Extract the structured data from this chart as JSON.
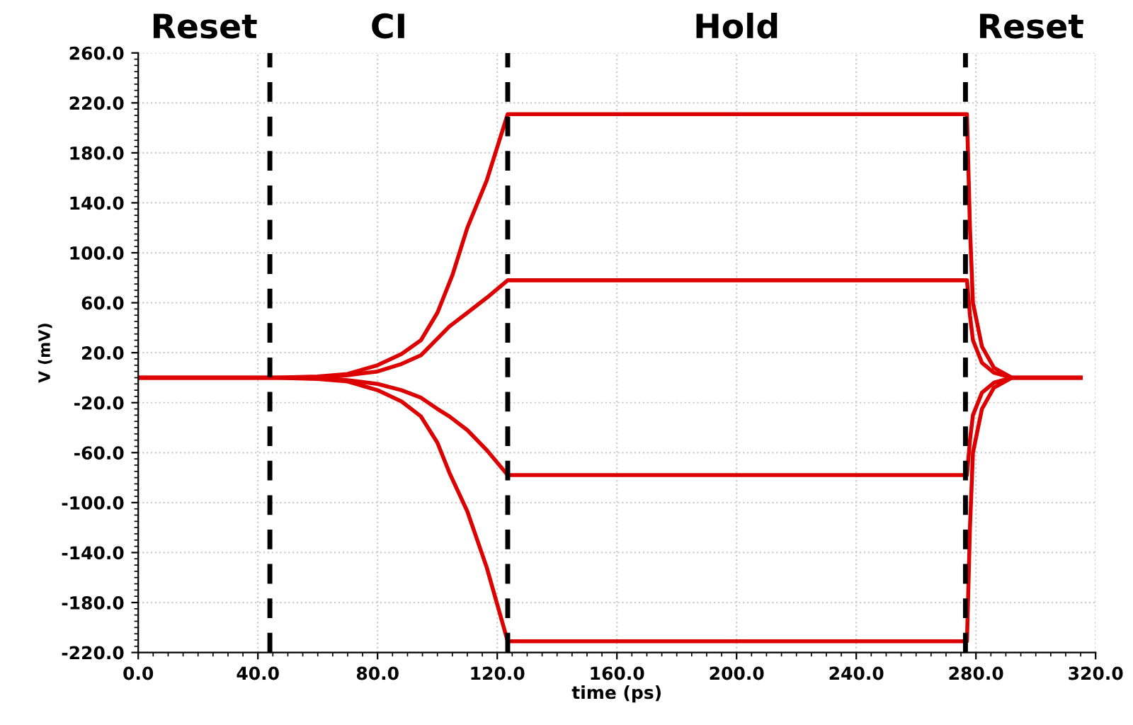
{
  "chart_data": {
    "type": "line",
    "xlabel": "time (ps)",
    "ylabel": "V (mV)",
    "series": [
      {
        "color": "#dd0000",
        "x": [
          0,
          45,
          60,
          70,
          80,
          88,
          94.5,
          100,
          105,
          110,
          116.5,
          123.5,
          277,
          278,
          279,
          282,
          286,
          292,
          315
        ],
        "values": [
          0,
          0,
          1,
          3,
          10,
          19,
          30,
          52,
          82,
          120,
          158,
          211,
          211,
          120,
          60,
          25,
          8,
          0,
          0
        ]
      },
      {
        "color": "#dd0000",
        "x": [
          0,
          45,
          60,
          70,
          80,
          88,
          94.5,
          104,
          110,
          116.5,
          123.5,
          277,
          278,
          279,
          282,
          286,
          292,
          315
        ],
        "values": [
          0,
          0,
          0,
          2,
          5,
          11,
          18,
          41,
          52,
          64,
          78,
          78,
          50,
          30,
          12,
          4,
          0,
          0
        ]
      },
      {
        "color": "#dd0000",
        "x": [
          0,
          45,
          60,
          70,
          80,
          88,
          94.5,
          100,
          104,
          110,
          116.5,
          123.5,
          277,
          278,
          279,
          282,
          286,
          292,
          315
        ],
        "values": [
          0,
          0,
          0,
          -2,
          -5,
          -10,
          -16,
          -25,
          -31,
          -42,
          -58,
          -78,
          -78,
          -50,
          -30,
          -12,
          -4,
          0,
          0
        ]
      },
      {
        "color": "#dd0000",
        "x": [
          0,
          45,
          60,
          70,
          80,
          88,
          94.5,
          100,
          104,
          110,
          116.5,
          123.5,
          277,
          278,
          279,
          282,
          286,
          292,
          315
        ],
        "values": [
          0,
          0,
          -1,
          -3,
          -10,
          -19,
          -31,
          -52,
          -76,
          -107,
          -152,
          -211,
          -211,
          -120,
          -60,
          -25,
          -8,
          0,
          0
        ]
      }
    ],
    "xlim": [
      0,
      320
    ],
    "ylim": [
      -220,
      260
    ],
    "xticks": [
      {
        "value": 0,
        "label": "0.0"
      },
      {
        "value": 40,
        "label": "40.0"
      },
      {
        "value": 80,
        "label": "80.0"
      },
      {
        "value": 120,
        "label": "120.0"
      },
      {
        "value": 160,
        "label": "160.0"
      },
      {
        "value": 200,
        "label": "200.0"
      },
      {
        "value": 240,
        "label": "240.0"
      },
      {
        "value": 280,
        "label": "280.0"
      },
      {
        "value": 320,
        "label": "320.0"
      }
    ],
    "yticks": [
      {
        "value": -220,
        "label": "-220.0"
      },
      {
        "value": -180,
        "label": "-180.0"
      },
      {
        "value": -140,
        "label": "-140.0"
      },
      {
        "value": -100,
        "label": "-100.0"
      },
      {
        "value": -60,
        "label": "-60.0"
      },
      {
        "value": -20,
        "label": "-20.0"
      },
      {
        "value": 20,
        "label": "20.0"
      },
      {
        "value": 60,
        "label": "60.0"
      },
      {
        "value": 100,
        "label": "100.0"
      },
      {
        "value": 140,
        "label": "140.0"
      },
      {
        "value": 180,
        "label": "180.0"
      },
      {
        "value": 220,
        "label": "220.0"
      },
      {
        "value": 260,
        "label": "260.0"
      }
    ],
    "ref_lines": [
      {
        "axis": "x",
        "value": 44,
        "color": "#000000",
        "line_style": "dashed"
      },
      {
        "axis": "x",
        "value": 123.5,
        "color": "#000000",
        "line_style": "dashed"
      },
      {
        "axis": "x",
        "value": 276.5,
        "color": "#000000",
        "line_style": "dashed"
      }
    ],
    "annotations": [
      "Reset",
      "CI",
      "Hold",
      "Reset"
    ],
    "grid": true,
    "legend": false,
    "marker": "none",
    "line_style": "solid"
  }
}
